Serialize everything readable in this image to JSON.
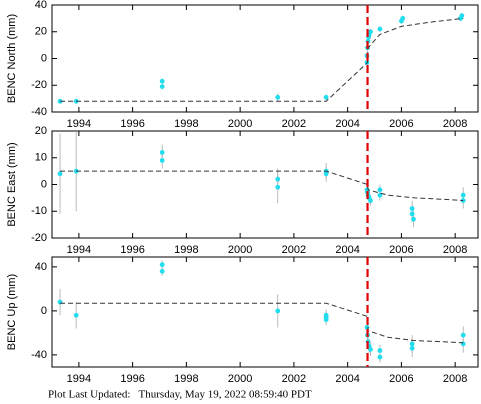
{
  "chart_data": [
    {
      "type": "scatter",
      "ylabel": "BENC North (mm)",
      "xlim": [
        1993.0,
        2008.85
      ],
      "xticks": [
        1994,
        1996,
        1998,
        2000,
        2002,
        2004,
        2006,
        2008
      ],
      "ylim": [
        -40,
        40
      ],
      "yticks": [
        -40,
        -20,
        0,
        20,
        40
      ],
      "vline": 2004.74,
      "vline_color": "#e00000",
      "series": [
        {
          "markers": true,
          "color": "#22ddee",
          "error_color": "#aaaaaa",
          "x": [
            1993.3,
            1993.9,
            1997.1,
            1997.1,
            2001.4,
            2003.2,
            2004.72,
            2004.72,
            2004.74,
            2004.76,
            2004.78,
            2004.8,
            2004.85,
            2005.2,
            2006.0,
            2006.05,
            2008.2,
            2008.25
          ],
          "values": [
            -32,
            -32,
            -17,
            -21,
            -29,
            -29,
            -3,
            2,
            8,
            13,
            16,
            18,
            20,
            22,
            28,
            30,
            30,
            32
          ],
          "errors": [
            2,
            2,
            2,
            2,
            3,
            2,
            3,
            3,
            3,
            2,
            2,
            2,
            2,
            2,
            2,
            2,
            2,
            2
          ]
        },
        {
          "markers": false,
          "color": "#333333",
          "x": [
            1993.3,
            2003.2,
            2004.74,
            2004.76,
            2005.2,
            2006.0,
            2007.0,
            2008.3
          ],
          "values": [
            -32,
            -32,
            -3,
            8,
            18,
            24,
            27,
            30
          ]
        }
      ]
    },
    {
      "type": "scatter",
      "ylabel": "BENC East (mm)",
      "xlim": [
        1993.0,
        2008.85
      ],
      "xticks": [
        1994,
        1996,
        1998,
        2000,
        2002,
        2004,
        2006,
        2008
      ],
      "ylim": [
        -20,
        20
      ],
      "yticks": [
        -20,
        -10,
        0,
        10,
        20
      ],
      "vline": 2004.74,
      "vline_color": "#e00000",
      "series": [
        {
          "markers": true,
          "color": "#22ddee",
          "error_color": "#aaaaaa",
          "x": [
            1993.3,
            1993.9,
            1997.1,
            1997.1,
            2001.4,
            2001.4,
            2003.2,
            2003.2,
            2004.72,
            2004.74,
            2004.76,
            2004.8,
            2004.85,
            2005.2,
            2005.2,
            2006.4,
            2006.4,
            2006.45,
            2008.3,
            2008.3
          ],
          "values": [
            4,
            5,
            12,
            9,
            2,
            -1,
            5,
            4,
            -2,
            -3,
            -4,
            -5,
            -6,
            -2,
            -4,
            -9,
            -11,
            -13,
            -4,
            -6
          ],
          "errors": [
            15,
            15,
            3,
            3,
            4,
            6,
            3,
            3,
            3,
            2,
            2,
            2,
            2,
            2,
            2,
            3,
            3,
            3,
            3,
            3
          ]
        },
        {
          "markers": false,
          "color": "#333333",
          "x": [
            1993.3,
            2003.2,
            2004.74,
            2004.76,
            2005.5,
            2006.5,
            2007.5,
            2008.3
          ],
          "values": [
            5,
            5,
            0,
            -2,
            -4,
            -5,
            -5.5,
            -6
          ]
        }
      ]
    },
    {
      "type": "scatter",
      "ylabel": "BENC Up (mm)",
      "xlim": [
        1993.0,
        2008.85
      ],
      "xticks": [
        1994,
        1996,
        1998,
        2000,
        2002,
        2004,
        2006,
        2008
      ],
      "ylim": [
        -51,
        49
      ],
      "yticks": [
        -40,
        0,
        40
      ],
      "vline": 2004.74,
      "vline_color": "#e00000",
      "series": [
        {
          "markers": true,
          "color": "#22ddee",
          "error_color": "#aaaaaa",
          "x": [
            1993.3,
            1993.9,
            1997.1,
            1997.1,
            2001.4,
            2003.2,
            2003.2,
            2003.2,
            2004.72,
            2004.74,
            2004.76,
            2004.8,
            2004.85,
            2005.2,
            2005.2,
            2006.4,
            2006.4,
            2008.3,
            2008.3
          ],
          "values": [
            8,
            -4,
            42,
            36,
            0,
            -4,
            -6,
            -8,
            -15,
            -22,
            -28,
            -32,
            -35,
            -36,
            -42,
            -30,
            -34,
            -22,
            -30
          ],
          "errors": [
            12,
            12,
            4,
            4,
            15,
            5,
            5,
            5,
            6,
            6,
            6,
            6,
            6,
            5,
            5,
            8,
            8,
            8,
            8
          ]
        },
        {
          "markers": false,
          "color": "#333333",
          "x": [
            1993.3,
            2003.2,
            2004.74,
            2004.76,
            2005.5,
            2006.5,
            2007.5,
            2008.3
          ],
          "values": [
            7,
            7,
            -5,
            -18,
            -24,
            -27,
            -28,
            -29
          ]
        }
      ]
    }
  ],
  "footer": "Plot Last Updated:   Thursday, May 19, 2022 08:59:40 PDT"
}
